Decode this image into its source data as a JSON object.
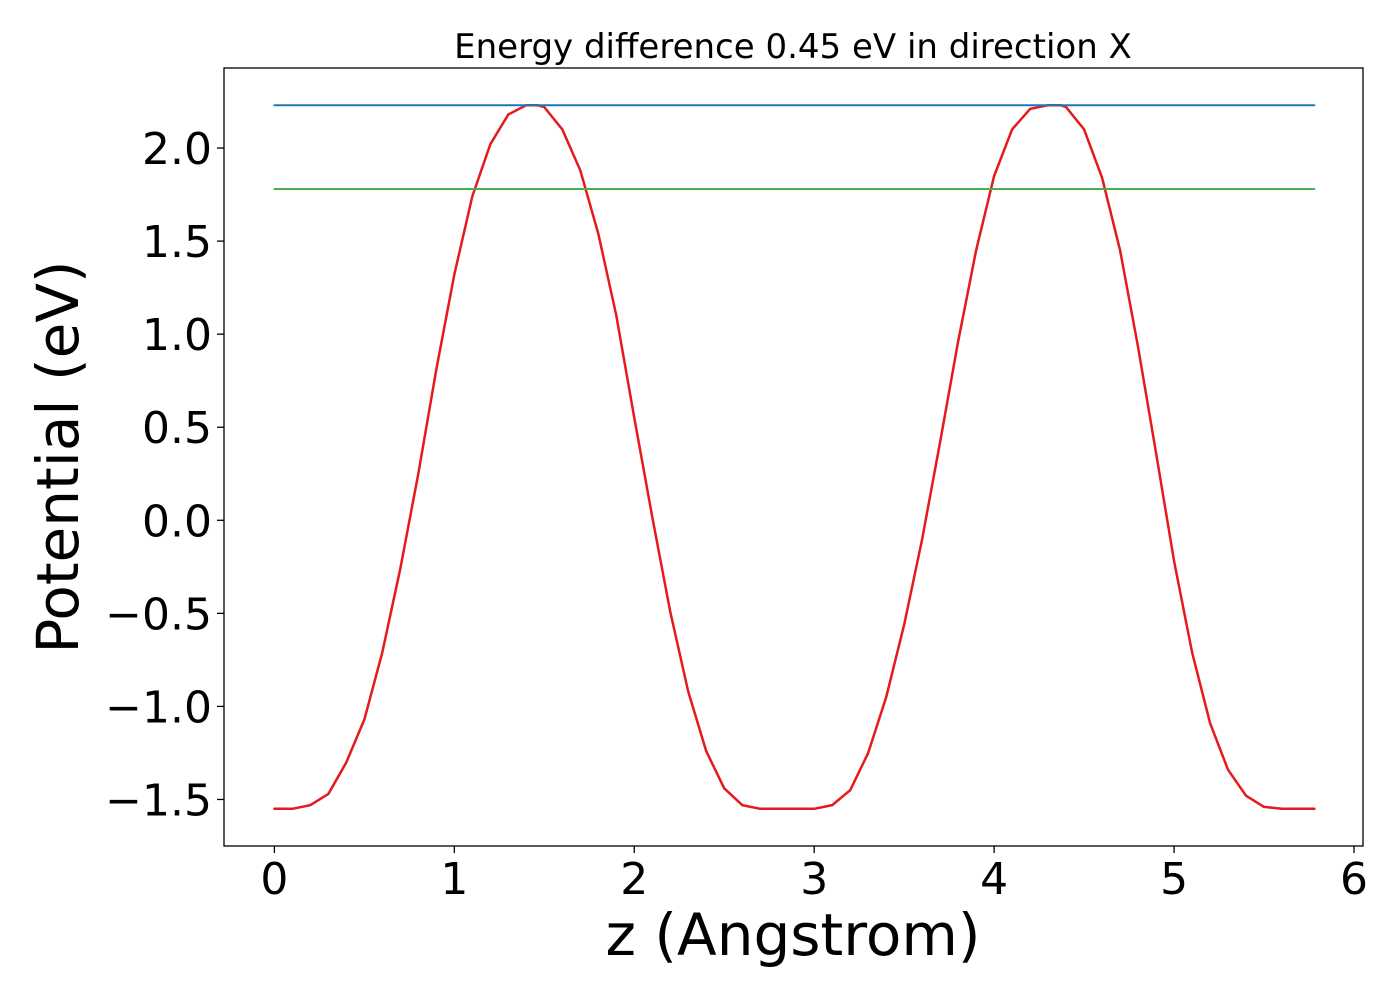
{
  "chart_data": {
    "type": "line",
    "title": "Energy difference 0.45 eV in direction X",
    "xlabel": "z (Angstrom)",
    "ylabel": "Potential (eV)",
    "xlim": [
      -0.28,
      6.05
    ],
    "ylim": [
      -1.75,
      2.43
    ],
    "x_ticks": [
      0,
      1,
      2,
      3,
      4,
      5,
      6
    ],
    "x_tick_labels": [
      "0",
      "1",
      "2",
      "3",
      "4",
      "5",
      "6"
    ],
    "y_ticks": [
      -1.5,
      -1.0,
      -0.5,
      0.0,
      0.5,
      1.0,
      1.5,
      2.0
    ],
    "y_tick_labels": [
      "−1.5",
      "−1.0",
      "−0.5",
      "0.0",
      "0.5",
      "1.0",
      "1.5",
      "2.0"
    ],
    "grid": false,
    "legend": "none",
    "series": [
      {
        "kind": "potential-curve",
        "color": "#e41a1c",
        "x": [
          0,
          0.1,
          0.2,
          0.3,
          0.4,
          0.5,
          0.6,
          0.7,
          0.8,
          0.9,
          1.0,
          1.1,
          1.2,
          1.3,
          1.4,
          1.46,
          1.5,
          1.6,
          1.7,
          1.8,
          1.9,
          2.0,
          2.1,
          2.2,
          2.3,
          2.4,
          2.5,
          2.6,
          2.7,
          2.8,
          2.9,
          3.0,
          3.1,
          3.2,
          3.3,
          3.4,
          3.5,
          3.6,
          3.7,
          3.8,
          3.9,
          4.0,
          4.1,
          4.2,
          4.3,
          4.37,
          4.4,
          4.5,
          4.6,
          4.7,
          4.8,
          4.9,
          5.0,
          5.1,
          5.2,
          5.3,
          5.4,
          5.5,
          5.6,
          5.7,
          5.78
        ],
        "y": [
          -1.55,
          -1.55,
          -1.53,
          -1.47,
          -1.3,
          -1.07,
          -0.71,
          -0.26,
          0.25,
          0.81,
          1.32,
          1.74,
          2.02,
          2.18,
          2.23,
          2.23,
          2.22,
          2.1,
          1.88,
          1.54,
          1.1,
          0.55,
          0.02,
          -0.49,
          -0.92,
          -1.24,
          -1.44,
          -1.53,
          -1.55,
          -1.55,
          -1.55,
          -1.55,
          -1.53,
          -1.45,
          -1.25,
          -0.95,
          -0.56,
          -0.1,
          0.42,
          0.96,
          1.45,
          1.85,
          2.1,
          2.21,
          2.23,
          2.23,
          2.22,
          2.1,
          1.84,
          1.45,
          0.93,
          0.36,
          -0.22,
          -0.71,
          -1.09,
          -1.34,
          -1.48,
          -1.54,
          -1.55,
          -1.55,
          -1.55
        ]
      },
      {
        "kind": "horizontal-line",
        "color": "#1f77b4",
        "x": [
          0,
          5.78
        ],
        "y": [
          2.23,
          2.23
        ]
      },
      {
        "kind": "horizontal-line",
        "color": "#4daf4a",
        "x": [
          0,
          5.78
        ],
        "y": [
          1.78,
          1.78
        ]
      }
    ]
  }
}
